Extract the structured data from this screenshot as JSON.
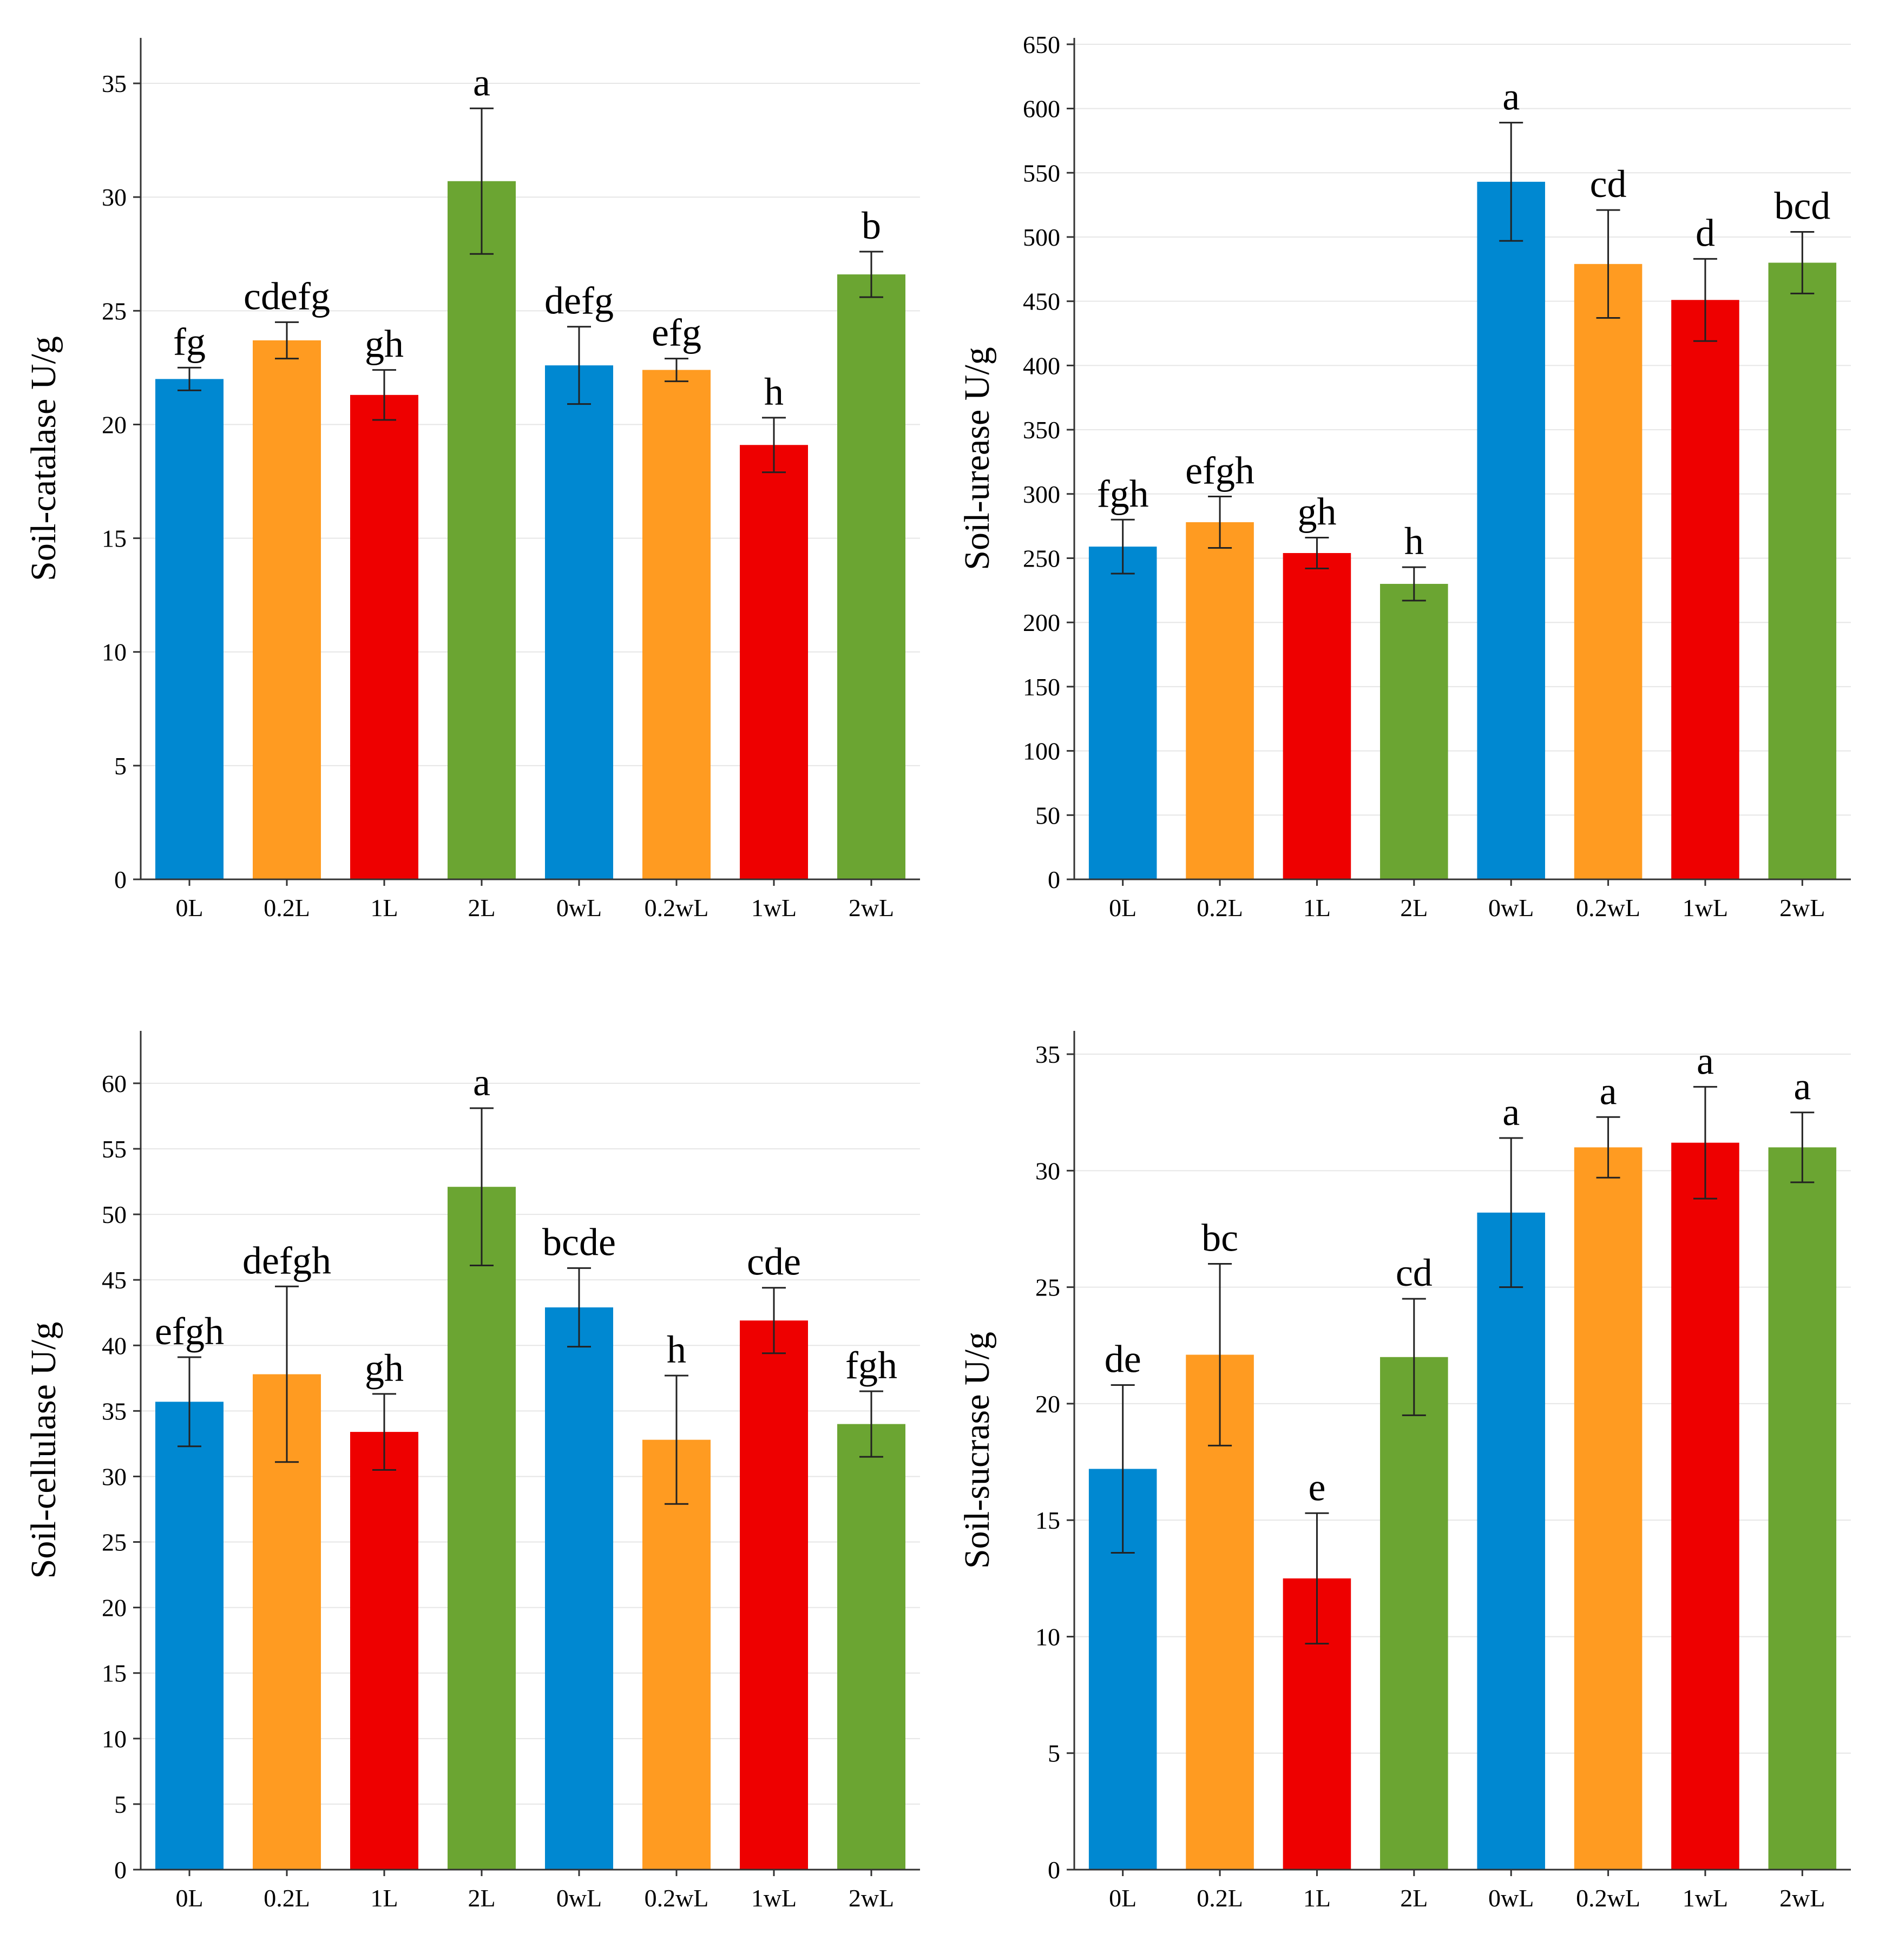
{
  "palette": [
    "#0088d1",
    "#ff9b21",
    "#ee0000",
    "#6ba532"
  ],
  "chart_data": [
    {
      "type": "bar",
      "ylabel": "Soil-catalase U/g",
      "categories": [
        "0L",
        "0.2L",
        "1L",
        "2L",
        "0wL",
        "0.2wL",
        "1wL",
        "2wL"
      ],
      "values": [
        22.0,
        23.7,
        21.3,
        30.7,
        22.6,
        22.4,
        19.1,
        26.6
      ],
      "errors": [
        0.5,
        0.8,
        1.1,
        3.2,
        1.7,
        0.5,
        1.2,
        1.0
      ],
      "labels": [
        "fg",
        "cdefg",
        "gh",
        "a",
        "defg",
        "efg",
        "h",
        "b"
      ],
      "yticks": [
        0,
        5,
        10,
        15,
        20,
        25,
        30,
        35
      ],
      "ylim": [
        0,
        37
      ],
      "grid": true,
      "legend": "none"
    },
    {
      "type": "bar",
      "ylabel": "Soil-urease U/g",
      "categories": [
        "0L",
        "0.2L",
        "1L",
        "2L",
        "0wL",
        "0.2wL",
        "1wL",
        "2wL"
      ],
      "values": [
        259,
        278,
        254,
        230,
        543,
        479,
        451,
        480
      ],
      "errors": [
        21,
        20,
        12,
        13,
        46,
        42,
        32,
        24
      ],
      "labels": [
        "fgh",
        "efgh",
        "gh",
        "h",
        "a",
        "cd",
        "d",
        "bcd"
      ],
      "yticks": [
        0,
        50,
        100,
        150,
        200,
        250,
        300,
        350,
        400,
        450,
        500,
        550,
        600,
        650
      ],
      "ylim": [
        0,
        655
      ],
      "grid": true,
      "legend": "none"
    },
    {
      "type": "bar",
      "ylabel": "Soil-cellulase U/g",
      "categories": [
        "0L",
        "0.2L",
        "1L",
        "2L",
        "0wL",
        "0.2wL",
        "1wL",
        "2wL"
      ],
      "values": [
        35.7,
        37.8,
        33.4,
        52.1,
        42.9,
        32.8,
        41.9,
        34.0
      ],
      "errors": [
        3.4,
        6.7,
        2.9,
        6.0,
        3.0,
        4.9,
        2.5,
        2.5
      ],
      "labels": [
        "efgh",
        "defgh",
        "gh",
        "a",
        "bcde",
        "h",
        "cde",
        "fgh"
      ],
      "yticks": [
        0,
        5,
        10,
        15,
        20,
        25,
        30,
        35,
        40,
        45,
        50,
        55,
        60
      ],
      "ylim": [
        0,
        64
      ],
      "grid": true,
      "legend": "none"
    },
    {
      "type": "bar",
      "ylabel": "Soil-sucrase U/g",
      "categories": [
        "0L",
        "0.2L",
        "1L",
        "2L",
        "0wL",
        "0.2wL",
        "1wL",
        "2wL"
      ],
      "values": [
        17.2,
        22.1,
        12.5,
        22.0,
        28.2,
        31.0,
        31.2,
        31.0
      ],
      "errors": [
        3.6,
        3.9,
        2.8,
        2.5,
        3.2,
        1.3,
        2.4,
        1.5
      ],
      "labels": [
        "de",
        "bc",
        "e",
        "cd",
        "a",
        "a",
        "a",
        "a"
      ],
      "yticks": [
        0,
        5,
        10,
        15,
        20,
        25,
        30,
        35
      ],
      "ylim": [
        0,
        36
      ],
      "grid": true,
      "legend": "none"
    }
  ]
}
